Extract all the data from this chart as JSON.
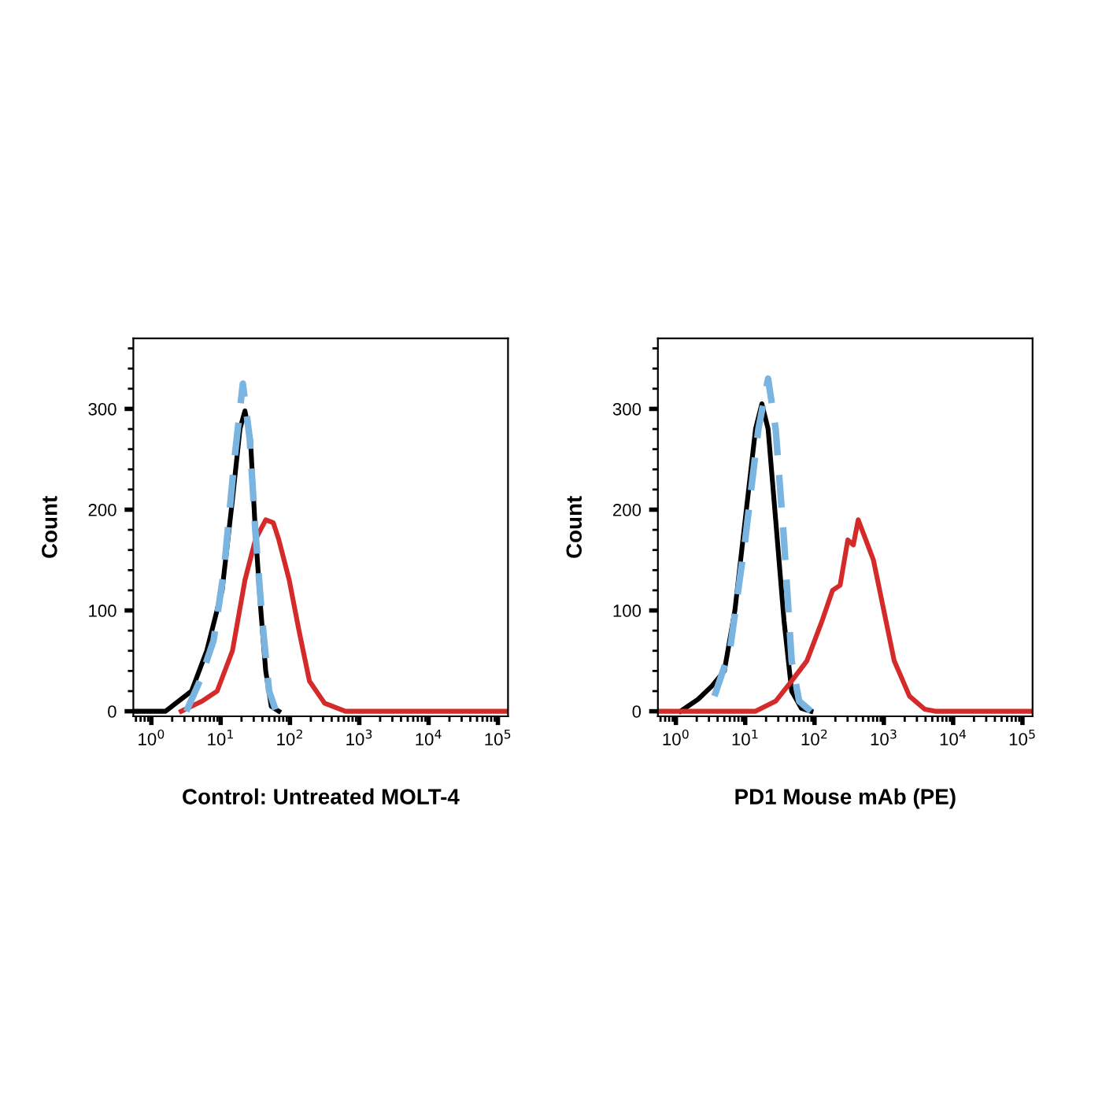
{
  "chart_data": [
    {
      "type": "line",
      "xlabel": "Control: Untreated MOLT-4",
      "ylabel": "Count",
      "log": "x",
      "grid": false,
      "marker": "none",
      "xlim": [
        0.55,
        140000
      ],
      "ylim": [
        -5,
        370
      ],
      "xticks": [
        {
          "value": 1,
          "label": "10$^{0}$"
        },
        {
          "value": 10,
          "label": "10$^{1}$"
        },
        {
          "value": 100,
          "label": "10$^{2}$"
        },
        {
          "value": 1000,
          "label": "10$^{3}$"
        },
        {
          "value": 10000,
          "label": "10$^{4}$"
        },
        {
          "value": 100000,
          "label": "10$^{5}$"
        }
      ],
      "yticks": [
        0,
        100,
        200,
        300
      ],
      "series": [
        {
          "color": "#000000",
          "line_style": "solid",
          "x": [
            0.55,
            1.6,
            3.8,
            6.3,
            10.5,
            14.8,
            19,
            22.4,
            26.9,
            31.6,
            38,
            44.7,
            53.7,
            69
          ],
          "values": [
            0,
            0,
            20,
            60,
            120,
            210,
            280,
            298,
            270,
            180,
            100,
            40,
            5,
            0
          ]
        },
        {
          "color": "#7ab4e0",
          "line_style": "dashed",
          "x": [
            3.2,
            5,
            7.9,
            11.2,
            15.8,
            20.9,
            26.3,
            31.6,
            39.8,
            50,
            63
          ],
          "values": [
            0,
            30,
            70,
            140,
            250,
            325,
            270,
            180,
            90,
            20,
            0
          ]
        },
        {
          "color": "#d42a2a",
          "line_style": "solid",
          "x": [
            2.7,
            5.4,
            8.9,
            14.8,
            22.4,
            31.6,
            44.7,
            57.5,
            69.2,
            97.7,
            135,
            191,
            316,
            631,
            140000
          ],
          "values": [
            0,
            10,
            20,
            60,
            130,
            170,
            190,
            187,
            170,
            130,
            80,
            30,
            8,
            0,
            0
          ]
        }
      ]
    },
    {
      "type": "line",
      "xlabel": "PD1 Mouse mAb (PE)",
      "ylabel": "Count",
      "log": "x",
      "grid": false,
      "marker": "none",
      "xlim": [
        0.55,
        140000
      ],
      "ylim": [
        -5,
        370
      ],
      "xticks": [
        {
          "value": 1,
          "label": "10$^{0}$"
        },
        {
          "value": 10,
          "label": "10$^{1}$"
        },
        {
          "value": 100,
          "label": "10$^{2}$"
        },
        {
          "value": 1000,
          "label": "10$^{3}$"
        },
        {
          "value": 10000,
          "label": "10$^{4}$"
        },
        {
          "value": 100000,
          "label": "10$^{5}$"
        }
      ],
      "yticks": [
        0,
        100,
        200,
        300
      ],
      "series": [
        {
          "color": "#000000",
          "line_style": "solid",
          "x": [
            1.17,
            2.1,
            3.3,
            5,
            7.1,
            10,
            14.1,
            17.4,
            21.4,
            27.5,
            36.3,
            46.8,
            64.6,
            89
          ],
          "values": [
            0,
            12,
            25,
            40,
            100,
            190,
            280,
            305,
            280,
            190,
            90,
            20,
            3,
            0
          ]
        },
        {
          "color": "#7ab4e0",
          "line_style": "dashed",
          "x": [
            3.6,
            6,
            10,
            15.5,
            21.4,
            27.5,
            36.3,
            46.8,
            60,
            89
          ],
          "values": [
            15,
            60,
            170,
            280,
            330,
            280,
            170,
            50,
            10,
            0
          ]
        },
        {
          "color": "#d42a2a",
          "line_style": "solid",
          "x": [
            0.55,
            14.1,
            27.5,
            46.8,
            77.6,
            129,
            182,
            234,
            302,
            363,
            427,
            550,
            708,
            1000,
            1413,
            2344,
            3890,
            5500,
            140000
          ],
          "values": [
            0,
            0,
            10,
            30,
            50,
            90,
            120,
            125,
            170,
            165,
            190,
            170,
            150,
            100,
            50,
            15,
            2,
            0,
            0
          ]
        }
      ]
    }
  ]
}
